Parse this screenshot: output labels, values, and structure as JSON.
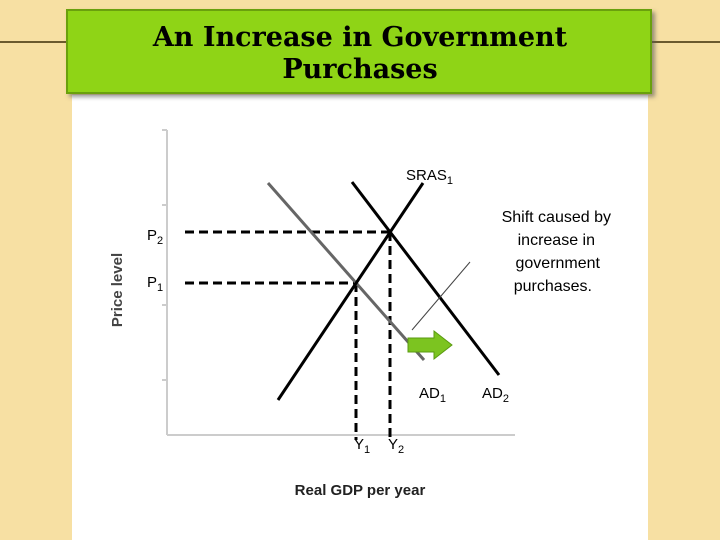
{
  "header": {
    "title": [
      "An Increase in Government",
      "Purchases"
    ]
  },
  "diagram": {
    "y_axis_label": "Price level",
    "x_axis_label": "Real GDP per year",
    "sras": {
      "base": "SRAS",
      "sub": "1"
    },
    "ad1": {
      "base": "AD",
      "sub": "1"
    },
    "ad2": {
      "base": "AD",
      "sub": "2"
    },
    "p2": {
      "base": "P",
      "sub": "2"
    },
    "p1": {
      "base": "P",
      "sub": "1"
    },
    "y1": {
      "base": "Y",
      "sub": "1"
    },
    "y2": {
      "base": "Y",
      "sub": "2"
    },
    "annotation": [
      "Shift caused by",
      "increase in",
      "government",
      "purchases."
    ]
  }
}
